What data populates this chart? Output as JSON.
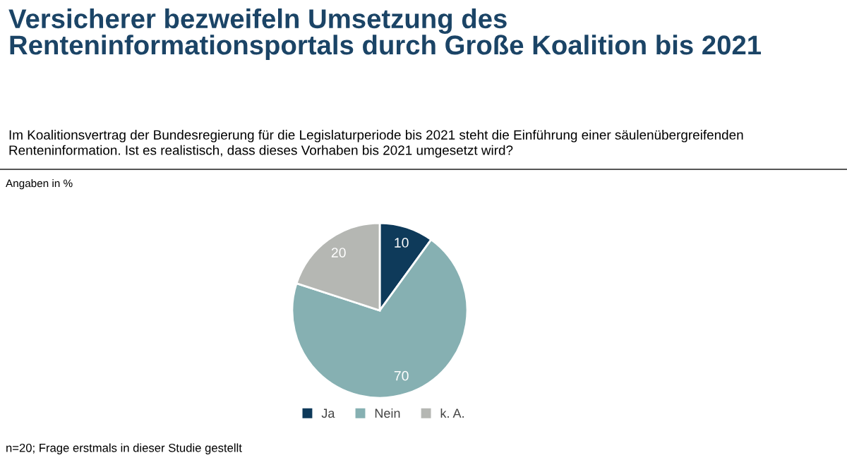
{
  "chart_data": {
    "type": "pie",
    "title": "Versicherer bezweifeln Umsetzung des\nRenteninformationsportals durch Große Koalition bis 2021",
    "subtitle": "Im Koalitionsvertrag der Bundesregierung für die Legislaturperiode bis 2021 steht die Einführung einer säulenübergreifenden\nRenteninformation. Ist es realistisch, dass dieses Vorhaben bis 2021 umgesetzt wird?",
    "annotations": [
      "Angaben in %",
      "n=20; Frage erstmals in dieser Studie gestellt"
    ],
    "categories": [
      "Ja",
      "Nein",
      "k. A."
    ],
    "values": [
      10,
      70,
      20
    ],
    "colors": [
      "#0e3a5a",
      "#86b0b2",
      "#b5b7b3"
    ],
    "data_labels": true,
    "legend": "bottom"
  }
}
